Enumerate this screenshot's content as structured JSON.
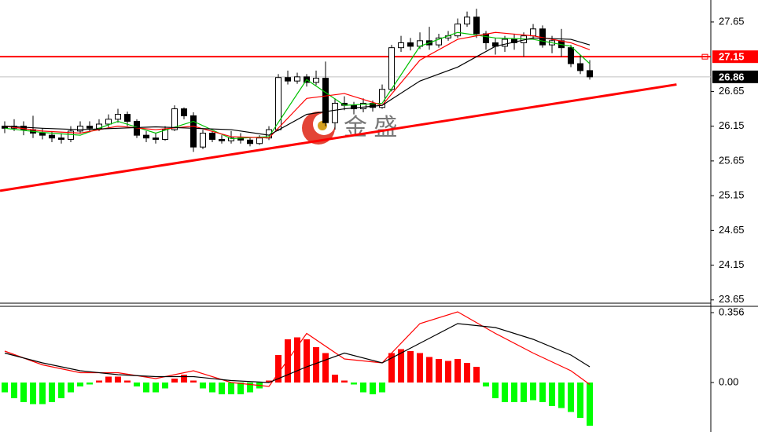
{
  "chart_data": [
    {
      "type": "candlestick",
      "xlim": [
        -0.5,
        74.83
      ],
      "ylim": [
        23.58,
        27.966
      ],
      "yticks": [
        27.65,
        26.65,
        26.15,
        25.65,
        25.15,
        24.65,
        24.15,
        23.65
      ],
      "up_color": "#ffffff",
      "down_color": "#000000",
      "open": [
        26.15,
        26.12,
        26.15,
        26.1,
        26.05,
        26.02,
        25.98,
        25.96,
        26.08,
        26.15,
        26.12,
        26.18,
        26.25,
        26.32,
        26.22,
        26.02,
        25.98,
        25.96,
        26.1,
        26.4,
        26.3,
        25.85,
        26.05,
        25.96,
        25.94,
        25.98,
        25.95,
        25.9,
        25.98,
        26.1,
        26.85,
        26.8,
        26.86,
        26.78,
        26.84,
        26.2,
        26.48,
        26.45,
        26.4,
        26.48,
        26.42,
        26.68,
        27.28,
        27.35,
        27.3,
        27.38,
        27.32,
        27.42,
        27.45,
        27.62,
        27.72,
        27.48,
        27.35,
        27.3,
        27.4,
        27.35,
        27.45,
        27.55,
        27.32,
        27.38,
        27.28,
        27.05,
        26.95
      ],
      "high": [
        26.22,
        26.25,
        26.22,
        26.3,
        26.12,
        26.08,
        26.05,
        26.15,
        26.22,
        26.22,
        26.25,
        26.32,
        26.4,
        26.36,
        26.25,
        26.08,
        26.05,
        26.15,
        26.45,
        26.42,
        26.35,
        26.1,
        26.08,
        26.02,
        26.08,
        26.05,
        25.98,
        26.02,
        26.15,
        26.9,
        26.95,
        26.92,
        26.9,
        26.95,
        27.08,
        26.55,
        26.58,
        26.5,
        26.55,
        26.52,
        26.75,
        27.32,
        27.45,
        27.42,
        27.5,
        27.58,
        27.48,
        27.52,
        27.7,
        27.8,
        27.84,
        27.52,
        27.42,
        27.45,
        27.48,
        27.5,
        27.62,
        27.6,
        27.45,
        27.55,
        27.32,
        27.18,
        27.1
      ],
      "low": [
        26.05,
        26.08,
        26.02,
        25.98,
        25.96,
        25.92,
        25.9,
        25.92,
        26.04,
        26.06,
        26.08,
        26.12,
        26.2,
        26.15,
        25.98,
        25.92,
        25.9,
        25.94,
        26.08,
        26.25,
        25.78,
        25.82,
        25.92,
        25.9,
        25.9,
        25.9,
        25.86,
        25.88,
        25.95,
        26.08,
        26.75,
        26.76,
        26.72,
        26.74,
        26.15,
        26.1,
        26.38,
        26.32,
        26.35,
        26.36,
        26.4,
        26.65,
        27.22,
        27.24,
        27.26,
        27.25,
        27.28,
        27.38,
        27.42,
        27.58,
        27.42,
        27.25,
        27.18,
        27.22,
        27.25,
        27.15,
        27.4,
        27.28,
        27.2,
        27.15,
        27.0,
        26.9,
        26.82
      ],
      "close": [
        26.12,
        26.15,
        26.1,
        26.05,
        26.02,
        25.98,
        25.96,
        26.08,
        26.15,
        26.12,
        26.18,
        26.25,
        26.32,
        26.22,
        26.02,
        25.98,
        25.96,
        26.1,
        26.4,
        26.3,
        25.85,
        26.05,
        25.96,
        25.94,
        25.98,
        25.95,
        25.9,
        25.98,
        26.1,
        26.85,
        26.8,
        26.86,
        26.78,
        26.84,
        26.2,
        26.48,
        26.45,
        26.4,
        26.48,
        26.42,
        26.68,
        27.28,
        27.35,
        27.3,
        27.38,
        27.32,
        27.42,
        27.45,
        27.62,
        27.72,
        27.48,
        27.35,
        27.3,
        27.4,
        27.35,
        27.45,
        27.55,
        27.32,
        27.38,
        27.28,
        27.05,
        26.95,
        26.86
      ],
      "series": [
        {
          "color": "#00c000",
          "x": [
            0,
            4,
            8,
            12,
            16,
            20,
            24,
            28,
            32,
            36,
            40,
            44,
            48,
            52,
            56,
            60,
            62
          ],
          "values": [
            26.12,
            26.06,
            26.02,
            26.22,
            26.05,
            26.22,
            25.97,
            26.0,
            26.82,
            26.45,
            26.48,
            27.3,
            27.5,
            27.42,
            27.4,
            27.3,
            27.05
          ]
        },
        {
          "color": "#ff0000",
          "x": [
            0,
            4,
            8,
            12,
            16,
            20,
            24,
            28,
            32,
            36,
            40,
            44,
            48,
            52,
            56,
            60,
            62
          ],
          "values": [
            26.15,
            26.08,
            26.05,
            26.15,
            26.1,
            26.15,
            26.0,
            25.98,
            26.55,
            26.62,
            26.45,
            27.1,
            27.4,
            27.5,
            27.45,
            27.35,
            27.25
          ]
        },
        {
          "color": "#000000",
          "x": [
            0,
            4,
            8,
            12,
            16,
            20,
            24,
            28,
            32,
            36,
            40,
            44,
            48,
            52,
            56,
            60,
            62
          ],
          "values": [
            26.15,
            26.12,
            26.1,
            26.12,
            26.14,
            26.12,
            26.1,
            26.02,
            26.32,
            26.4,
            26.45,
            26.8,
            27.0,
            27.3,
            27.42,
            27.4,
            27.32
          ]
        }
      ],
      "trendline": {
        "color": "#ff0000",
        "x": [
          -0.5,
          71.2
        ],
        "values": [
          25.22,
          26.75
        ]
      },
      "price_lines": [
        {
          "value": 27.15,
          "color": "#ff0000",
          "label_color": "#ff0000"
        },
        {
          "value": 26.86,
          "color": "#c0c0c0",
          "label_color": "#000000"
        }
      ],
      "watermark": "金 盛"
    },
    {
      "type": "bar",
      "xlim": [
        -0.5,
        74.83
      ],
      "ylim": [
        -0.252,
        0.388
      ],
      "yticks": [
        0.356,
        {
          "value": 0,
          "label": "0.00"
        }
      ],
      "up_color": "#ff0000",
      "down_color": "#00ff00",
      "values": [
        -0.05,
        -0.08,
        -0.1,
        -0.11,
        -0.11,
        -0.1,
        -0.08,
        -0.05,
        -0.02,
        -0.01,
        0.01,
        0.03,
        0.03,
        0.01,
        -0.02,
        -0.05,
        -0.05,
        -0.03,
        0.02,
        0.04,
        0.01,
        -0.03,
        -0.05,
        -0.06,
        -0.06,
        -0.06,
        -0.05,
        -0.03,
        0.01,
        0.14,
        0.22,
        0.23,
        0.22,
        0.18,
        0.15,
        0.04,
        0.01,
        -0.01,
        -0.05,
        -0.06,
        -0.05,
        0.15,
        0.17,
        0.16,
        0.15,
        0.13,
        0.12,
        0.11,
        0.12,
        0.1,
        0.08,
        -0.02,
        -0.08,
        -0.1,
        -0.1,
        -0.1,
        -0.09,
        -0.1,
        -0.12,
        -0.13,
        -0.15,
        -0.18,
        -0.22
      ],
      "series": [
        {
          "color": "#ff0000",
          "x": [
            0,
            4,
            8,
            12,
            16,
            20,
            24,
            28,
            32,
            36,
            40,
            44,
            48,
            52,
            56,
            60,
            62
          ],
          "values": [
            0.16,
            0.09,
            0.05,
            0.05,
            0.02,
            0.06,
            0.0,
            -0.02,
            0.25,
            0.12,
            0.1,
            0.3,
            0.36,
            0.25,
            0.15,
            0.06,
            -0.01
          ]
        },
        {
          "color": "#000000",
          "x": [
            0,
            4,
            8,
            12,
            16,
            20,
            24,
            28,
            32,
            36,
            40,
            44,
            48,
            52,
            56,
            60,
            62
          ],
          "values": [
            0.15,
            0.1,
            0.06,
            0.04,
            0.03,
            0.03,
            0.01,
            0.0,
            0.08,
            0.15,
            0.1,
            0.2,
            0.3,
            0.28,
            0.22,
            0.14,
            0.08
          ]
        }
      ]
    }
  ]
}
